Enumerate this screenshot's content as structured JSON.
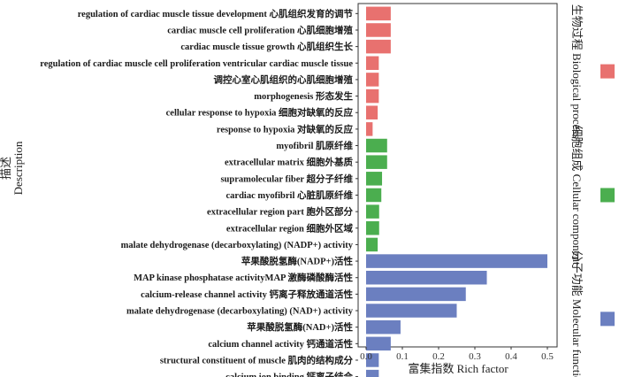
{
  "chart_data": {
    "type": "bar",
    "orientation": "horizontal",
    "xlabel": "富集指数 Rich factor",
    "ylabel_lines": [
      "描述",
      "Description"
    ],
    "xlim": [
      0,
      0.5
    ],
    "xticks": [
      "0.0",
      "0.1",
      "0.2",
      "0.3",
      "0.4",
      "0.5"
    ],
    "categories": [
      "regulation of cardiac muscle tissue development 心肌组织发育的调节",
      "cardiac muscle cell proliferation 心肌细胞增殖",
      "cardiac muscle tissue growth 心肌组织生长",
      "regulation of cardiac muscle cell proliferation ventricular cardiac muscle tissue",
      "调控心室心肌组织的心肌细胞增殖",
      "morphogenesis 形态发生",
      "cellular response to hypoxia 细胞对缺氧的反应",
      "response to hypoxia 对缺氧的反应",
      "myofibril 肌原纤维",
      "extracellular matrix 细胞外基质",
      "supramolecular fiber 超分子纤维",
      "cardiac myofibril 心脏肌原纤维",
      "extracellular region part 胞外区部分",
      "extracellular region 细胞外区域",
      "malate dehydrogenase (decarboxylating) (NADP+) activity",
      "苹果酸脱氢酶(NADP+)活性",
      "MAP kinase phosphatase activityMAP 激酶磷酸酶活性",
      "calcium-release channel activity 钙离子释放通道活性",
      "malate dehydrogenase (decarboxylating) (NAD+) activity",
      "苹果酸脱氢酶(NAD+)活性",
      "calcium channel activity 钙通道活性",
      "structural constituent of muscle 肌肉的结构成分",
      "calcium ion binding 钙离子结合"
    ],
    "values": [
      0.068,
      0.068,
      0.068,
      0.035,
      0.035,
      0.035,
      0.032,
      0.018,
      0.058,
      0.058,
      0.044,
      0.042,
      0.036,
      0.036,
      0.032,
      0.5,
      0.333,
      0.275,
      0.25,
      0.095,
      0.068,
      0.035,
      0.035
    ],
    "groups": [
      0,
      0,
      0,
      0,
      0,
      0,
      0,
      0,
      1,
      1,
      1,
      1,
      1,
      1,
      1,
      2,
      2,
      2,
      2,
      2,
      2,
      2,
      2
    ],
    "series": [
      {
        "name": "生物过程 Biological process",
        "color": "#e8716f"
      },
      {
        "name": "细胞组成 Cellular component",
        "color": "#4bae4f"
      },
      {
        "name": "分子功能 Molecular function",
        "color": "#6b7fc0"
      }
    ],
    "legend_position": "right",
    "grid": false
  }
}
